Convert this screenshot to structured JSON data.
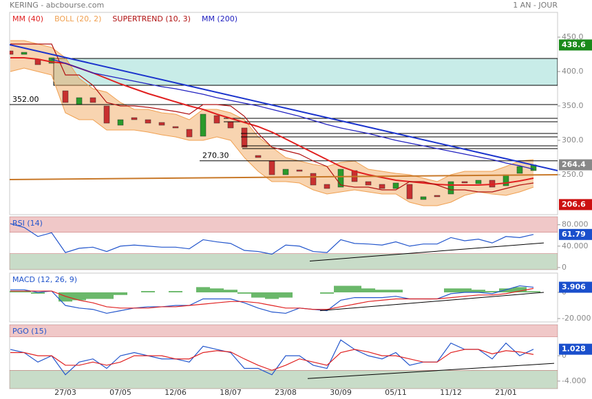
{
  "header": {
    "title": "KERING - abcbourse.com",
    "period": "1 AN - JOUR"
  },
  "chart_data": [
    {
      "type": "candlestick",
      "categories": [
        null,
        null,
        null,
        null,
        "27/03",
        null,
        null,
        null,
        "07/05",
        null,
        null,
        null,
        "12/06",
        null,
        null,
        null,
        "18/07",
        null,
        null,
        null,
        "23/08",
        null,
        null,
        null,
        "30/09",
        null,
        null,
        null,
        "05/11",
        null,
        null,
        null,
        "11/12",
        null,
        null,
        null,
        "21/01",
        null,
        null
      ],
      "open": [
        430,
        425,
        418,
        412,
        372,
        352,
        362,
        350,
        322,
        333,
        330,
        326,
        320,
        316,
        306,
        336,
        327,
        318,
        278,
        270,
        250,
        257,
        252,
        236,
        232,
        256,
        240,
        236,
        230,
        236,
        214,
        220,
        222,
        240,
        237,
        242,
        234,
        252,
        256
      ],
      "close": [
        425,
        428,
        410,
        420,
        355,
        362,
        355,
        325,
        330,
        330,
        325,
        322,
        318,
        305,
        338,
        325,
        318,
        290,
        275,
        250,
        258,
        255,
        235,
        230,
        258,
        240,
        235,
        230,
        238,
        215,
        218,
        218,
        240,
        238,
        242,
        232,
        250,
        262,
        264.4
      ],
      "up_color": "#2a9a2a",
      "down_color": "#c83030",
      "ylim": [
        192,
        486
      ],
      "yticks": [
        {
          "value": 250,
          "label": "250.0"
        },
        {
          "value": 300,
          "label": "300.0"
        },
        {
          "value": 350,
          "label": "350.0"
        },
        {
          "value": 400,
          "label": "400.0"
        },
        {
          "value": 450,
          "label": "450.0"
        }
      ],
      "bands": {
        "name": "BOLL (20, 2)",
        "color": "#f0a050",
        "upper": [
          445,
          445,
          440,
          435,
          420,
          390,
          375,
          370,
          355,
          345,
          345,
          340,
          338,
          330,
          345,
          345,
          340,
          330,
          305,
          290,
          275,
          270,
          265,
          262,
          268,
          270,
          258,
          255,
          252,
          250,
          245,
          240,
          250,
          255,
          255,
          255,
          262,
          270,
          272
        ],
        "lower": [
          400,
          405,
          400,
          395,
          340,
          330,
          330,
          315,
          315,
          315,
          312,
          308,
          305,
          300,
          300,
          305,
          300,
          275,
          255,
          240,
          240,
          238,
          228,
          222,
          225,
          228,
          225,
          222,
          222,
          210,
          205,
          205,
          210,
          220,
          225,
          222,
          220,
          225,
          232
        ]
      },
      "series": [
        {
          "name": "MM (40)",
          "color": "#e02020",
          "values": [
            420,
            420,
            418,
            414,
            412,
            405,
            398,
            390,
            382,
            375,
            368,
            362,
            356,
            350,
            345,
            338,
            332,
            326,
            320,
            312,
            302,
            292,
            282,
            272,
            262,
            255,
            250,
            246,
            242,
            240,
            238,
            236,
            235,
            235,
            235,
            236,
            238,
            241,
            245
          ]
        },
        {
          "name": "SUPERTREND (10, 3)",
          "color": "#b01010",
          "values": [
            440,
            440,
            440,
            440,
            395,
            395,
            380,
            355,
            350,
            350,
            348,
            345,
            342,
            338,
            352,
            352,
            350,
            335,
            310,
            290,
            285,
            280,
            270,
            262,
            235,
            232,
            232,
            228,
            228,
            240,
            240,
            235,
            228,
            228,
            225,
            225,
            230,
            235,
            238
          ]
        },
        {
          "name": "MM (200)",
          "color": "#2020c0",
          "values": [
            null,
            null,
            null,
            418,
            412,
            405,
            398,
            394,
            390,
            386,
            382,
            378,
            375,
            371,
            367,
            362,
            358,
            354,
            350,
            345,
            340,
            335,
            329,
            323,
            318,
            314,
            310,
            305,
            300,
            296,
            292,
            288,
            284,
            280,
            276,
            272,
            267,
            263,
            258
          ]
        }
      ],
      "zone": {
        "from": 380,
        "to": 419,
        "start": 3.15,
        "color": "#c8ece8"
      },
      "hlines": [
        {
          "value": 352,
          "label": "352.00",
          "start": -0.05
        },
        {
          "value": 270.3,
          "label": "270.30",
          "start": 13.75
        },
        {
          "value": 332,
          "start": 15.5
        },
        {
          "value": 327,
          "start": 15.5
        },
        {
          "value": 310,
          "start": 16.75
        },
        {
          "value": 305,
          "start": 16.75
        },
        {
          "value": 292,
          "start": 16.85
        },
        {
          "value": 288,
          "start": 16.85
        }
      ],
      "trendlines": [
        {
          "color": "#1a33cc",
          "start": [
            -0.05,
            439
          ],
          "end": [
            39.75,
            256
          ]
        },
        {
          "color": "#c87828",
          "start": [
            -0.05,
            243
          ],
          "end": [
            39.75,
            250
          ]
        }
      ],
      "price_labels": [
        {
          "value": 438.6,
          "color": "#1a8a1a"
        },
        {
          "value": 264.4,
          "color": "#888888"
        },
        {
          "value": 206.6,
          "color": "#cc1111"
        }
      ]
    },
    {
      "type": "line",
      "ylim": [
        -4,
        95
      ],
      "yticks": [
        {
          "value": 0,
          "label": "0"
        },
        {
          "value": 40,
          "label": "40.000"
        },
        {
          "value": 80,
          "label": "80.000"
        }
      ],
      "zones": [
        {
          "from": 66,
          "to": 95,
          "color": "#f0c8c8"
        },
        {
          "from": -4,
          "to": 26,
          "color": "#c8dcc8"
        }
      ],
      "series": [
        {
          "name": "RSI (14)",
          "color": "#2255cc",
          "values": [
            82,
            75,
            58,
            65,
            28,
            36,
            38,
            30,
            40,
            42,
            40,
            38,
            38,
            35,
            52,
            48,
            45,
            32,
            30,
            25,
            42,
            40,
            30,
            28,
            52,
            45,
            44,
            42,
            48,
            40,
            44,
            44,
            56,
            50,
            53,
            46,
            58,
            56,
            61.79
          ]
        }
      ],
      "trendlines": [
        {
          "color": "#000000",
          "start": [
            21.75,
            12
          ],
          "end": [
            38.75,
            46
          ]
        }
      ],
      "last_label": {
        "value": 61.79,
        "color": "#1a4fcc"
      }
    },
    {
      "type": "line",
      "ylim": [
        -22.6,
        14.7
      ],
      "yticks": [
        {
          "value": -20,
          "label": "-20.000"
        },
        0
      ],
      "histogram": {
        "color": "#6ab86a",
        "values": [
          1,
          1,
          -1,
          0,
          -7,
          -6,
          -5,
          -5,
          -2,
          0,
          1,
          0,
          1,
          0,
          4,
          3,
          2,
          -1,
          -4,
          -5,
          -4,
          0,
          0,
          -1,
          5,
          5,
          3,
          2,
          2,
          0,
          0,
          0,
          3,
          3,
          2,
          1,
          3,
          4,
          0.906
        ]
      },
      "series": [
        {
          "name": "MACD (12, 26, 9)",
          "color": "#2255cc",
          "values": [
            2,
            2,
            0,
            1,
            -10,
            -12,
            -13,
            -16,
            -14,
            -12,
            -11,
            -11,
            -10,
            -10,
            -5,
            -5,
            -5,
            -8,
            -12,
            -15,
            -16,
            -12,
            -13,
            -14,
            -6,
            -4,
            -4,
            -4,
            -3,
            -5,
            -5,
            -5,
            -1,
            0,
            0,
            -1,
            2,
            5,
            3.906
          ]
        },
        {
          "color": "#e02020",
          "values": [
            1,
            1,
            1,
            1,
            -3,
            -6,
            -8,
            -11,
            -12,
            -12,
            -12,
            -11,
            -11,
            -10,
            -9,
            -8,
            -7,
            -7,
            -8,
            -10,
            -12,
            -12,
            -13,
            -13,
            -11,
            -9,
            -7,
            -6,
            -5,
            -5,
            -5,
            -5,
            -4,
            -3,
            -2,
            -2,
            -1,
            1,
            3
          ]
        }
      ],
      "trendlines": [
        {
          "color": "#000000",
          "start": [
            22.5,
            -14
          ],
          "end": [
            38.75,
            0
          ]
        }
      ],
      "last_label": {
        "value": 3.906,
        "color": "#1a4fcc"
      }
    },
    {
      "type": "line",
      "ylim": [
        -5.2,
        4.9
      ],
      "yticks": [
        {
          "value": -4,
          "label": "-4.000"
        },
        0
      ],
      "zones": [
        {
          "from": 3,
          "to": 4.9,
          "color": "#f0c8c8"
        },
        {
          "from": -5.2,
          "to": -2.3,
          "color": "#c8dcc8"
        }
      ],
      "series": [
        {
          "name": "PGO (15)",
          "color": "#2255cc",
          "values": [
            1,
            0.5,
            -1,
            0,
            -3,
            -1,
            -0.5,
            -2,
            0,
            0.5,
            0,
            -0.5,
            -0.5,
            -1,
            1.5,
            1,
            0.5,
            -2,
            -2,
            -3,
            0,
            0,
            -1.5,
            -2,
            2.5,
            1,
            0,
            -0.5,
            0.5,
            -1.5,
            -1,
            -1,
            2,
            1,
            1,
            -0.5,
            2,
            0,
            1.028
          ]
        },
        {
          "color": "#e02020",
          "values": [
            0.5,
            0.5,
            0,
            0,
            -1.5,
            -1.5,
            -1,
            -1.5,
            -1,
            0,
            0,
            0,
            -0.5,
            -0.5,
            0.5,
            0.8,
            0.6,
            -0.5,
            -1.5,
            -2.3,
            -1.5,
            -0.5,
            -1,
            -1.5,
            0.5,
            1,
            0.6,
            0,
            0,
            -0.5,
            -1,
            -1,
            0.5,
            1,
            1,
            0.3,
            0.8,
            0.6,
            0.2
          ]
        }
      ],
      "trendlines": [
        {
          "color": "#000000",
          "start": [
            21.6,
            -3.6
          ],
          "end": [
            39.5,
            -1.2
          ]
        }
      ],
      "last_label": {
        "value": 1.028,
        "color": "#1a4fcc"
      }
    }
  ]
}
